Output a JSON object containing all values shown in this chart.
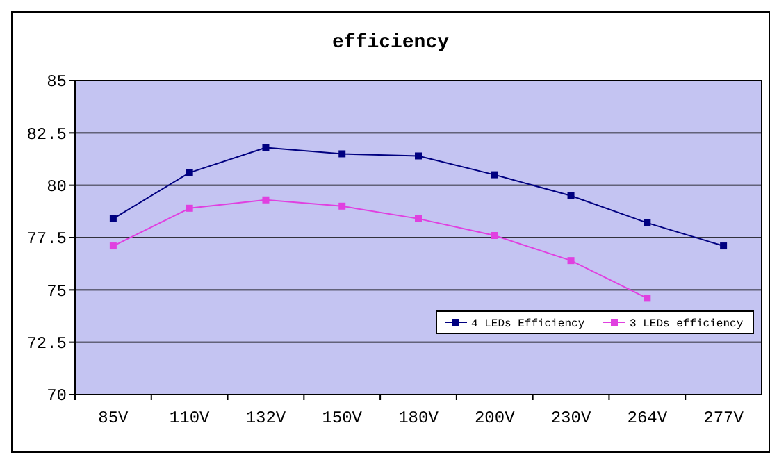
{
  "chart_data": {
    "type": "line",
    "title": "efficiency",
    "categories": [
      "85V",
      "110V",
      "132V",
      "150V",
      "180V",
      "200V",
      "230V",
      "264V",
      "277V"
    ],
    "series": [
      {
        "name": "4 LEDs Efficiency",
        "color": "#000080",
        "values": [
          78.4,
          80.6,
          81.8,
          81.5,
          81.4,
          80.5,
          79.5,
          78.2,
          77.1
        ]
      },
      {
        "name": "3 LEDs efficiency",
        "color": "#e040e0",
        "values": [
          77.1,
          78.9,
          79.3,
          79.0,
          78.4,
          77.6,
          76.4,
          74.6,
          null
        ]
      }
    ],
    "ylim": [
      70,
      85
    ],
    "yticks": [
      70,
      72.5,
      75,
      77.5,
      80,
      82.5,
      85
    ],
    "grid": "y",
    "legend": "bottom right",
    "marker": "square",
    "line_style": "solid"
  }
}
